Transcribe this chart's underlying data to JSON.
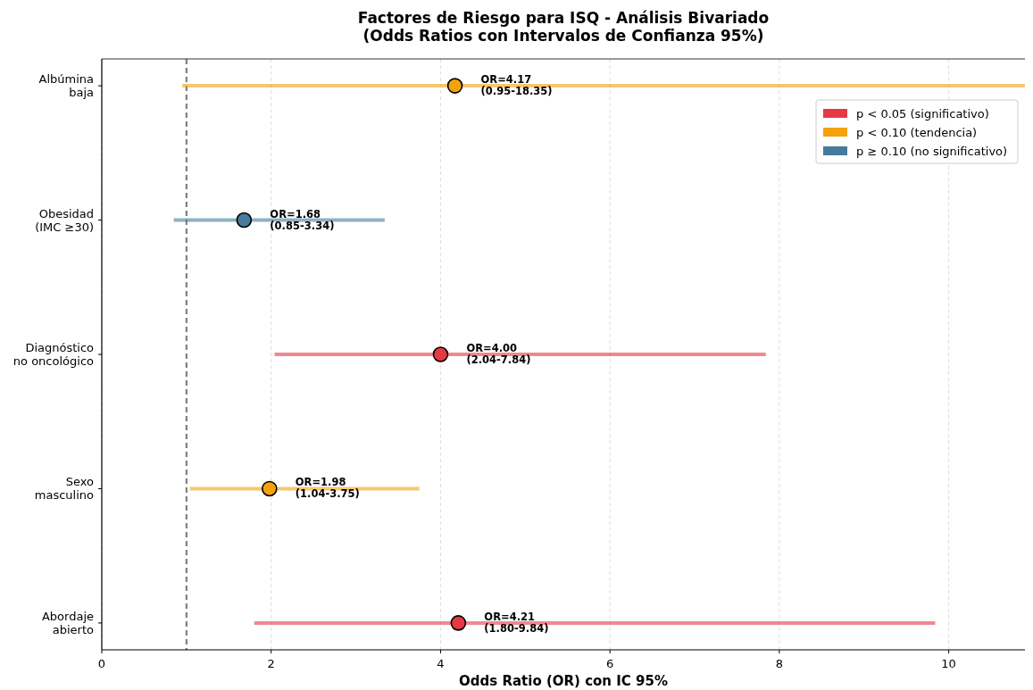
{
  "chart_data": {
    "type": "scatter",
    "orientation": "horizontal",
    "title": "Factores de Riesgo para ISQ - Análisis Bivariado\n(Odds Ratios con Intervalos de Confianza 95%)",
    "xlabel": "Odds Ratio (OR) con IC 95%",
    "categories": [
      "Albúmina\nbaja",
      "Obesidad\n(IMC ≥30)",
      "Diagnóstico\nno oncológico",
      "Sexo\nmasculino",
      "Abordaje\nabierto"
    ],
    "series": [
      {
        "name": "p < 0.05 (significativo)",
        "color": "#e63946",
        "values": [
          null,
          null,
          4.0,
          null,
          4.21
        ],
        "errors": [
          null,
          null,
          [
            2.04,
            7.84
          ],
          null,
          [
            1.8,
            9.84
          ]
        ],
        "value_labels": [
          null,
          null,
          "OR=4.00\n(2.04-7.84)",
          null,
          "OR=4.21\n(1.80-9.84)"
        ]
      },
      {
        "name": "p < 0.10 (tendencia)",
        "color": "#f4a20c",
        "values": [
          4.17,
          null,
          null,
          1.98,
          null
        ],
        "errors": [
          [
            0.95,
            18.35
          ],
          null,
          null,
          [
            1.04,
            3.75
          ],
          null
        ],
        "value_labels": [
          "OR=4.17\n(0.95-18.35)",
          null,
          null,
          "OR=1.98\n(1.04-3.75)",
          null
        ]
      },
      {
        "name": "p ≥ 0.10 (no significativo)",
        "color": "#457b9d",
        "values": [
          null,
          1.68,
          null,
          null,
          null
        ],
        "errors": [
          null,
          [
            0.85,
            3.34
          ],
          null,
          null,
          null
        ],
        "value_labels": [
          null,
          "OR=1.68\n(0.85-3.34)",
          null,
          null,
          null
        ]
      }
    ],
    "xlim": [
      0,
      10.9
    ],
    "xticks": [
      0,
      2,
      4,
      6,
      8,
      10
    ],
    "ref_lines": [
      {
        "axis": "x",
        "value": 1,
        "color": "#808080",
        "line_style": "dashed"
      }
    ],
    "grid": "x",
    "legend": "top right",
    "marker": "circle"
  }
}
